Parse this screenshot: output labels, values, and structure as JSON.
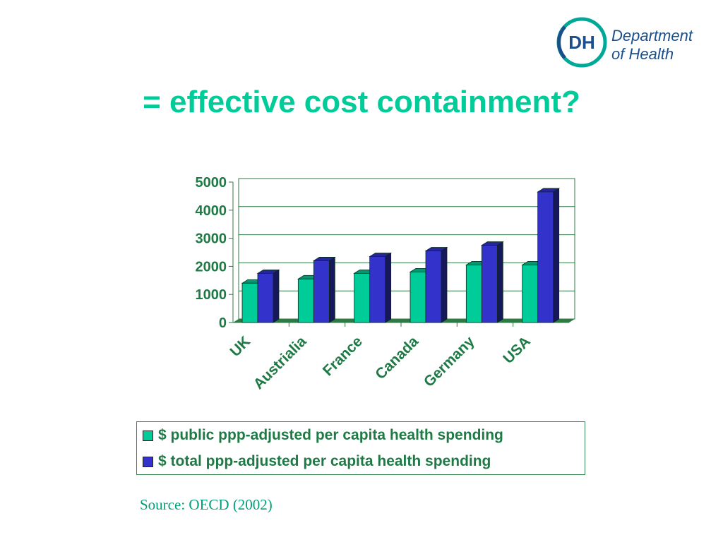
{
  "header": {
    "title": "= effective cost containment?",
    "logo": {
      "mark": "DH",
      "line1": "Department",
      "line2": "of Health"
    }
  },
  "source": "Source: OECD (2002)",
  "colors": {
    "title": "#00cc99",
    "axis_text": "#1e7a45",
    "public": "#00cc99",
    "total": "#3333cc",
    "logo_blue": "#1a4f8c",
    "logo_teal": "#00a898"
  },
  "chart_data": {
    "type": "bar",
    "title": "",
    "xlabel": "",
    "ylabel": "",
    "categories": [
      "UK",
      "Austrialia",
      "France",
      "Canada",
      "Germany",
      "USA"
    ],
    "series": [
      {
        "name": "$ public ppp-adjusted per capita health spending",
        "values": [
          1400,
          1550,
          1750,
          1800,
          2050,
          2050
        ]
      },
      {
        "name": "$ total ppp-adjusted per capita health spending",
        "values": [
          1750,
          2200,
          2350,
          2550,
          2750,
          4650
        ]
      }
    ],
    "ylim": [
      0,
      5000
    ],
    "yticks": [
      "0",
      "1000",
      "2000",
      "3000",
      "4000",
      "5000"
    ],
    "grid": true,
    "legend": "bottom"
  }
}
